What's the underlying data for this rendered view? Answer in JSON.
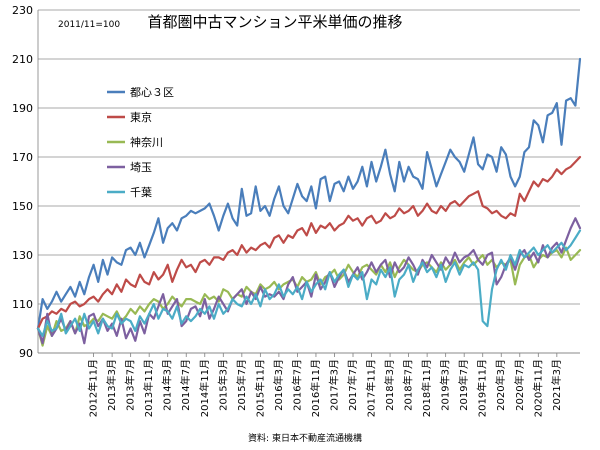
{
  "chart_data": {
    "type": "line",
    "title": "首都圏中古マンション平米単価の推移",
    "subtitle": "2011/11=100",
    "source": "資料: 東日本不動産流通機構",
    "xlabel": "",
    "ylabel": "",
    "ylim": [
      90,
      230
    ],
    "yticks": [
      90,
      110,
      130,
      150,
      170,
      190,
      210,
      230
    ],
    "grid": true,
    "legend_position": "left",
    "x_tick_labels": [
      "2012年11月",
      "2013年3月",
      "2013年7月",
      "2013年11月",
      "2014年3月",
      "2014年7月",
      "2014年11月",
      "2015年3月",
      "2015年7月",
      "2015年11月",
      "2016年3月",
      "2016年7月",
      "2016年11月",
      "2017年3月",
      "2017年7月",
      "2017年11月",
      "2018年3月",
      "2018年7月",
      "2018年11月",
      "2019年3月",
      "2019年7月",
      "2019年11月",
      "2020年3月",
      "2020年7月",
      "2020年11月",
      "2021年3月"
    ],
    "x_start": "2011年11月",
    "x_end": "2021年7月",
    "series": [
      {
        "name": "都心３区",
        "color": "#4a7ebb",
        "values": [
          100,
          112,
          108,
          111,
          115,
          111,
          114,
          117,
          113,
          119,
          114,
          121,
          126,
          119,
          128,
          122,
          129,
          127,
          126,
          132,
          133,
          130,
          135,
          129,
          134,
          139,
          145,
          135,
          141,
          143,
          140,
          145,
          146,
          148,
          147,
          148,
          149,
          151,
          146,
          140,
          146,
          151,
          145,
          142,
          157,
          146,
          147,
          158,
          148,
          150,
          146,
          153,
          158,
          150,
          147,
          153,
          159,
          154,
          152,
          158,
          149,
          161,
          162,
          152,
          159,
          160,
          156,
          162,
          157,
          160,
          166,
          158,
          168,
          160,
          166,
          173,
          163,
          156,
          168,
          160,
          166,
          162,
          161,
          157,
          172,
          165,
          158,
          163,
          168,
          173,
          170,
          168,
          164,
          171,
          178,
          167,
          165,
          171,
          170,
          164,
          174,
          171,
          162,
          158,
          162,
          172,
          174,
          185,
          183,
          176,
          187,
          188,
          192,
          175,
          193,
          194,
          191,
          210
        ]
      },
      {
        "name": "東京",
        "color": "#be4b48",
        "values": [
          100,
          104,
          105,
          107,
          106,
          108,
          107,
          110,
          111,
          109,
          110,
          112,
          113,
          111,
          114,
          116,
          114,
          118,
          115,
          120,
          118,
          117,
          122,
          119,
          118,
          123,
          120,
          122,
          126,
          119,
          124,
          128,
          125,
          126,
          123,
          127,
          128,
          126,
          129,
          129,
          128,
          131,
          132,
          130,
          134,
          131,
          133,
          132,
          134,
          135,
          133,
          137,
          138,
          135,
          138,
          137,
          140,
          141,
          138,
          143,
          139,
          142,
          141,
          143,
          140,
          142,
          143,
          146,
          144,
          145,
          142,
          145,
          146,
          143,
          144,
          147,
          145,
          146,
          149,
          147,
          148,
          150,
          146,
          148,
          151,
          148,
          147,
          150,
          148,
          151,
          152,
          150,
          152,
          154,
          155,
          156,
          150,
          149,
          147,
          148,
          146,
          145,
          147,
          146,
          155,
          152,
          156,
          160,
          158,
          161,
          160,
          162,
          165,
          163,
          165,
          166,
          168,
          170
        ]
      },
      {
        "name": "神奈川",
        "color": "#98b954",
        "values": [
          100,
          93,
          101,
          97,
          103,
          99,
          100,
          103,
          98,
          105,
          101,
          102,
          104,
          103,
          106,
          105,
          104,
          107,
          103,
          105,
          108,
          106,
          109,
          107,
          110,
          112,
          111,
          108,
          110,
          113,
          111,
          109,
          112,
          112,
          111,
          110,
          114,
          112,
          113,
          111,
          116,
          115,
          112,
          114,
          113,
          117,
          115,
          114,
          118,
          116,
          117,
          119,
          116,
          118,
          119,
          120,
          117,
          121,
          119,
          120,
          123,
          118,
          121,
          122,
          124,
          120,
          122,
          126,
          123,
          121,
          125,
          126,
          124,
          122,
          126,
          123,
          127,
          121,
          125,
          128,
          126,
          124,
          123,
          126,
          127,
          125,
          123,
          127,
          124,
          126,
          128,
          124,
          127,
          129,
          126,
          128,
          130,
          126,
          128,
          125,
          127,
          126,
          128,
          118,
          126,
          129,
          130,
          125,
          128,
          130,
          129,
          131,
          132,
          129,
          133,
          128,
          130,
          132
        ]
      },
      {
        "name": "埼玉",
        "color": "#7d60a0",
        "values": [
          100,
          94,
          106,
          97,
          100,
          104,
          99,
          103,
          98,
          102,
          94,
          105,
          106,
          101,
          104,
          99,
          102,
          97,
          104,
          96,
          100,
          95,
          103,
          98,
          106,
          104,
          109,
          114,
          106,
          109,
          112,
          101,
          103,
          108,
          109,
          105,
          112,
          104,
          108,
          113,
          110,
          107,
          112,
          114,
          116,
          110,
          115,
          112,
          117,
          113,
          114,
          113,
          115,
          112,
          118,
          121,
          115,
          117,
          119,
          113,
          122,
          116,
          119,
          123,
          117,
          121,
          124,
          119,
          122,
          125,
          120,
          123,
          127,
          123,
          126,
          128,
          121,
          127,
          123,
          125,
          129,
          126,
          122,
          128,
          125,
          130,
          127,
          124,
          129,
          126,
          131,
          127,
          129,
          130,
          132,
          128,
          126,
          130,
          131,
          118,
          121,
          126,
          129,
          124,
          130,
          132,
          128,
          131,
          127,
          134,
          129,
          133,
          135,
          131,
          136,
          141,
          145,
          141
        ]
      },
      {
        "name": "千葉",
        "color": "#4bacc6",
        "values": [
          100,
          97,
          103,
          99,
          100,
          106,
          98,
          101,
          104,
          99,
          106,
          100,
          103,
          98,
          104,
          101,
          100,
          106,
          102,
          104,
          103,
          99,
          105,
          102,
          106,
          110,
          104,
          108,
          107,
          104,
          109,
          102,
          105,
          103,
          105,
          108,
          106,
          109,
          104,
          110,
          106,
          108,
          112,
          110,
          109,
          113,
          110,
          114,
          109,
          116,
          112,
          114,
          118,
          113,
          116,
          114,
          117,
          112,
          119,
          115,
          118,
          120,
          116,
          123,
          119,
          122,
          124,
          117,
          122,
          120,
          123,
          112,
          120,
          118,
          124,
          121,
          125,
          113,
          120,
          122,
          126,
          119,
          124,
          127,
          123,
          125,
          121,
          126,
          119,
          124,
          127,
          122,
          126,
          125,
          127,
          124,
          103,
          101,
          116,
          124,
          128,
          124,
          130,
          126,
          132,
          129,
          131,
          133,
          130,
          132,
          134,
          131,
          133,
          135,
          132,
          134,
          137,
          140
        ]
      }
    ]
  }
}
